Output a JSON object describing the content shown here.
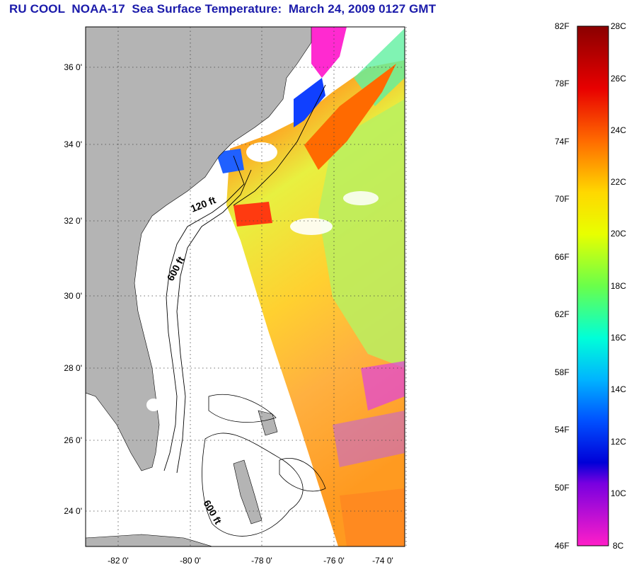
{
  "title": "RU COOL  NOAA-17  Sea Surface Temperature:  March 24, 2009 0127 GMT",
  "map": {
    "lat_labels": [
      "36 0'",
      "34 0'",
      "32 0'",
      "30 0'",
      "28 0'",
      "26 0'",
      "24 0'"
    ],
    "lon_labels": [
      "-82 0'",
      "-80 0'",
      "-78 0'",
      "-76 0'",
      "-74 0'"
    ],
    "contours": {
      "shelf_120": "120 ft",
      "slope_600_north": "600 ft",
      "slope_600_south": "600 ft"
    },
    "land_color": "#b4b4b4",
    "no_data_color": "#ffffff"
  },
  "colorbar": {
    "fahrenheit_labels": [
      "82F",
      "78F",
      "74F",
      "70F",
      "66F",
      "62F",
      "58F",
      "54F",
      "50F",
      "46F"
    ],
    "celsius_labels": [
      "28C",
      "26C",
      "24C",
      "22C",
      "20C",
      "18C",
      "16C",
      "14C",
      "12C",
      "10C",
      "8C"
    ]
  }
}
